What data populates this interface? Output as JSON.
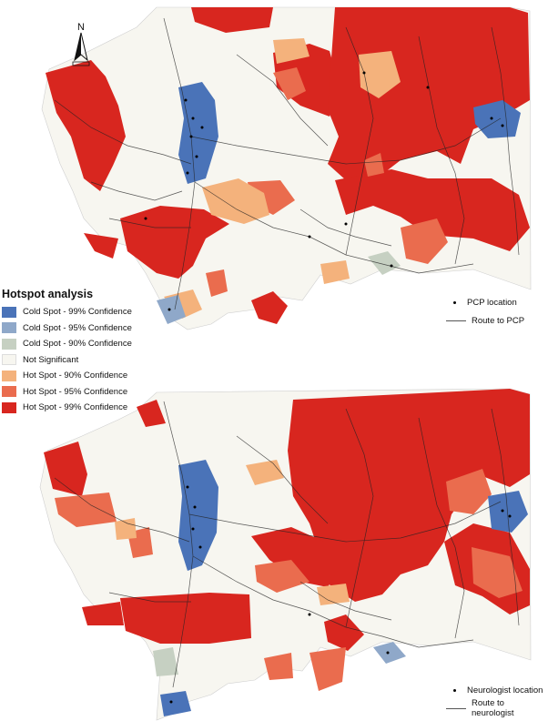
{
  "legend": {
    "title": "Hotspot analysis",
    "items": [
      {
        "label": "Cold Spot - 99% Confidence",
        "color": "#4a73b8"
      },
      {
        "label": "Cold Spot - 95% Confidence",
        "color": "#8fa8c9"
      },
      {
        "label": "Cold Spot - 90% Confidence",
        "color": "#c6d0c2"
      },
      {
        "label": "Not Significant",
        "color": "#f7f6f0"
      },
      {
        "label": "Hot Spot - 90% Confidence",
        "color": "#f4b27c"
      },
      {
        "label": "Hot Spot - 95% Confidence",
        "color": "#ea6c4e"
      },
      {
        "label": "Hot Spot - 99% Confidence",
        "color": "#d8261f"
      }
    ]
  },
  "north_arrow": {
    "letter": "N",
    "icon": "north-arrow-icon"
  },
  "maps": [
    {
      "id": "pcp",
      "location_label": "PCP location",
      "route_label": "Route to PCP"
    },
    {
      "id": "neurologist",
      "location_label": "Neurologist location",
      "route_label": "Route to neurologist"
    }
  ],
  "colors": {
    "base": "#f7f6f0",
    "hot99": "#d8261f",
    "hot95": "#ea6c4e",
    "hot90": "#f4b27c",
    "cold99": "#4a73b8",
    "cold95": "#8fa8c9",
    "cold90": "#c6d0c2",
    "route": "#222222"
  }
}
